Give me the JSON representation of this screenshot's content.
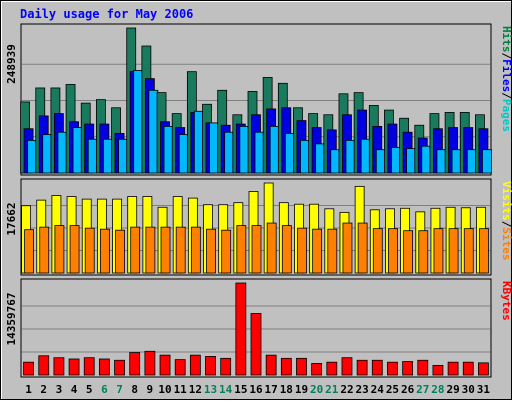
{
  "chart_data": {
    "type": "bar",
    "title": "Daily usage for May 2006",
    "categories": [
      "1",
      "2",
      "3",
      "4",
      "5",
      "6",
      "7",
      "8",
      "9",
      "10",
      "11",
      "12",
      "13",
      "14",
      "15",
      "16",
      "17",
      "18",
      "19",
      "20",
      "21",
      "22",
      "23",
      "24",
      "25",
      "26",
      "27",
      "28",
      "29",
      "30",
      "31"
    ],
    "weekend_days": [
      "6",
      "7",
      "13",
      "14",
      "20",
      "21",
      "27",
      "28"
    ],
    "panels": [
      {
        "ymax_label": "248939",
        "ymax": 248939,
        "legend": [
          {
            "text": "Pages",
            "color": "#00c8c8"
          },
          {
            "text": "/",
            "color": "#000000"
          },
          {
            "text": "Files",
            "color": "#0000ff"
          },
          {
            "text": "/",
            "color": "#000000"
          },
          {
            "text": "Hits",
            "color": "#008040"
          }
        ],
        "series": [
          {
            "name": "Hits",
            "color": "#1a7a5e",
            "values": [
              122000,
              146000,
              146000,
              152000,
              120000,
              126000,
              112000,
              248939,
              218000,
              138000,
              102000,
              174000,
              118000,
              142000,
              100000,
              140000,
              164000,
              154000,
              112000,
              102000,
              100000,
              136000,
              138000,
              116000,
              108000,
              94000,
              82000,
              102000,
              104000,
              104000,
              100000
            ]
          },
          {
            "name": "Files",
            "color": "#0000e0",
            "values": [
              76000,
              98000,
              102000,
              88000,
              84000,
              84000,
              68000,
              174000,
              162000,
              88000,
              78000,
              104000,
              86000,
              82000,
              84000,
              100000,
              110000,
              112000,
              90000,
              78000,
              74000,
              100000,
              108000,
              80000,
              84000,
              70000,
              60000,
              76000,
              78000,
              78000,
              76000
            ]
          },
          {
            "name": "Pages",
            "color": "#00b8ff",
            "values": [
              56000,
              66000,
              70000,
              78000,
              58000,
              58000,
              58000,
              176000,
              142000,
              80000,
              66000,
              106000,
              86000,
              70000,
              80000,
              70000,
              80000,
              68000,
              56000,
              50000,
              40000,
              56000,
              58000,
              40000,
              44000,
              42000,
              46000,
              40000,
              40000,
              40000,
              40000
            ]
          }
        ]
      },
      {
        "ymax_label": "17662",
        "ymax": 17662,
        "legend": [
          {
            "text": "Sites",
            "color": "#ff8000"
          },
          {
            "text": "/",
            "color": "#000000"
          },
          {
            "text": "Visits",
            "color": "#ffff00"
          }
        ],
        "series": [
          {
            "name": "Visits",
            "color": "#ffff00",
            "values": [
              13200,
              14300,
              15200,
              15000,
              14500,
              14500,
              14500,
              15000,
              15000,
              12900,
              15000,
              14700,
              13400,
              13400,
              13800,
              16000,
              17662,
              13800,
              13500,
              13500,
              12600,
              11900,
              17000,
              12400,
              12600,
              12700,
              12000,
              12700,
              12900,
              12800,
              12900
            ]
          },
          {
            "name": "Sites",
            "color": "#ff8000",
            "values": [
              8500,
              9000,
              9300,
              9300,
              8800,
              8600,
              8400,
              9000,
              9000,
              9000,
              9000,
              9000,
              8600,
              8400,
              9300,
              9300,
              9800,
              9300,
              8800,
              8600,
              8600,
              9800,
              9800,
              8700,
              8700,
              8300,
              8300,
              8700,
              8700,
              8700,
              8700
            ]
          }
        ]
      },
      {
        "ymax_label": "14359767",
        "ymax": 14359767,
        "legend": [
          {
            "text": "KBytes",
            "color": "#ff0000"
          }
        ],
        "series": [
          {
            "name": "KBytes",
            "color": "#ff0000",
            "values": [
              2000000,
              3000000,
              2700000,
              2500000,
              2700000,
              2500000,
              2300000,
              3500000,
              3700000,
              3100000,
              2400000,
              3100000,
              2900000,
              2600000,
              14359767,
              9600000,
              3100000,
              2600000,
              2600000,
              1800000,
              2000000,
              2700000,
              2300000,
              2300000,
              2000000,
              2100000,
              2300000,
              1500000,
              2000000,
              2000000,
              1900000
            ]
          }
        ]
      }
    ],
    "colors": {
      "title": "#0000ff",
      "background": "#c0c0c0",
      "gridline": "#808080",
      "weekday_label": "#000000",
      "weekend_label": "#00805c"
    }
  }
}
